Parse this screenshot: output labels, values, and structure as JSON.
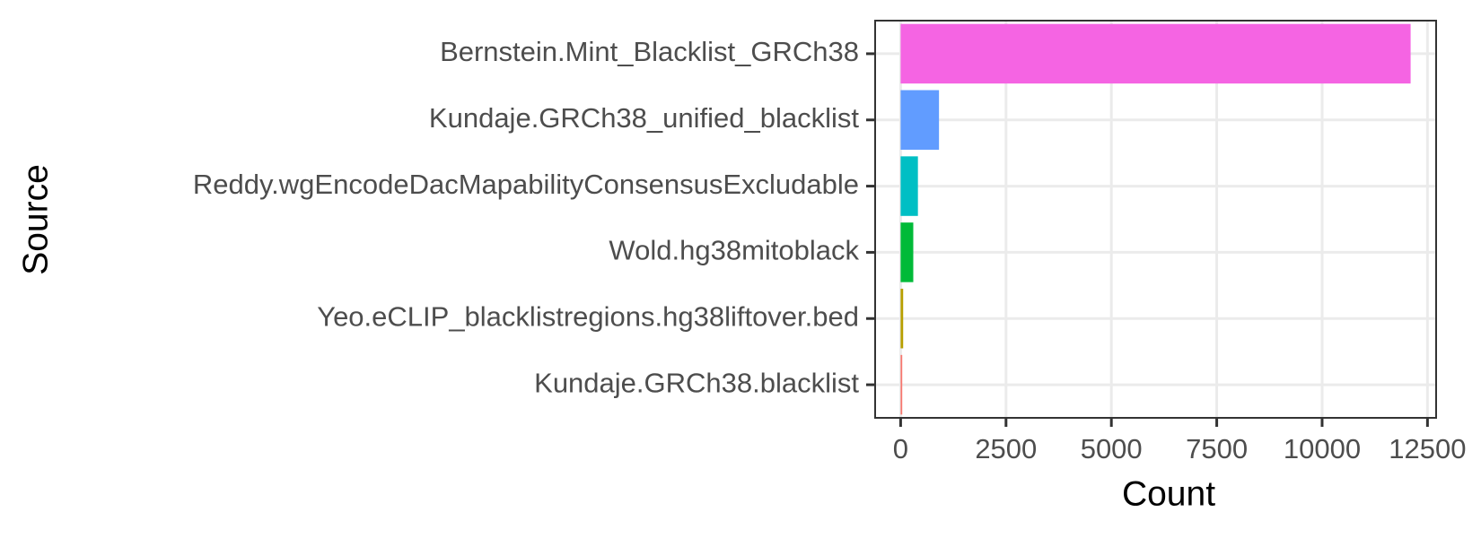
{
  "chart_data": {
    "type": "hbar",
    "x_label": "Count",
    "y_label": "Source",
    "categories": [
      "Bernstein.Mint_Blacklist_GRCh38",
      "Kundaje.GRCh38_unified_blacklist",
      "Reddy.wgEncodeDacMapabilityConsensusExcludable",
      "Wold.hg38mitoblack",
      "Yeo.eCLIP_blacklistregions.hg38liftover.bed",
      "Kundaje.GRCh38.blacklist"
    ],
    "values": [
      12100,
      910,
      410,
      300,
      60,
      38
    ],
    "colors": [
      "#F564E3",
      "#619CFF",
      "#00BFC4",
      "#00BA38",
      "#B79F00",
      "#F8766D"
    ],
    "xlim": [
      -605,
      12705
    ],
    "xticks": [
      0,
      2500,
      5000,
      7500,
      10000,
      12500
    ],
    "grid": true
  }
}
